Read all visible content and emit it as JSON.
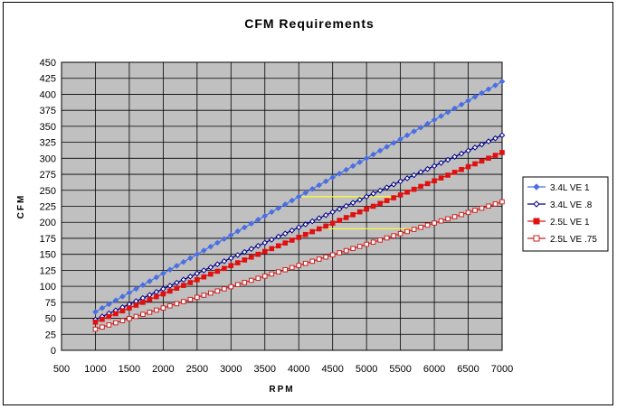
{
  "chart_data": {
    "type": "line",
    "title": "CFM Requirements",
    "xlabel": "RPM",
    "ylabel": "CFM",
    "xlim": [
      500,
      7000
    ],
    "ylim": [
      0,
      450
    ],
    "x_ticks": [
      500,
      1000,
      1500,
      2000,
      2500,
      3000,
      3500,
      4000,
      4500,
      5000,
      5500,
      6000,
      6500,
      7000
    ],
    "y_ticks": [
      0,
      25,
      50,
      75,
      100,
      125,
      150,
      175,
      200,
      225,
      250,
      275,
      300,
      325,
      350,
      375,
      400,
      425,
      450
    ],
    "x_tick_labels": [
      "500",
      "1000",
      "1500",
      "2000",
      "2500",
      "3000",
      "3500",
      "4000",
      "4500",
      "5000",
      "5500",
      "6000",
      "6500",
      "7000"
    ],
    "y_tick_labels": [
      "0",
      "25",
      "50",
      "75",
      "100",
      "125",
      "150",
      "175",
      "200",
      "225",
      "250",
      "275",
      "300",
      "325",
      "350",
      "375",
      "400",
      "425",
      "450"
    ],
    "grid": true,
    "plot_background": "#c0c0c0",
    "legend_position": "right",
    "x": [
      1000,
      7000
    ],
    "series": [
      {
        "name": "3.4L VE 1",
        "values": [
          60,
          420
        ],
        "color": "#4a6fe3",
        "marker": "diamond-filled"
      },
      {
        "name": "3.4L VE .8",
        "values": [
          48,
          336
        ],
        "color": "#00008b",
        "marker": "diamond-open"
      },
      {
        "name": "2.5L VE 1",
        "values": [
          44,
          309
        ],
        "color": "#e01010",
        "marker": "square-filled"
      },
      {
        "name": "2.5L VE .75",
        "values": [
          33,
          232
        ],
        "color": "#d02020",
        "marker": "square-open"
      }
    ],
    "reference_lines": [
      {
        "from": [
          4000,
          240
        ],
        "to": [
          5400,
          240
        ],
        "color": "#ffff33"
      },
      {
        "from": [
          4400,
          190
        ],
        "to": [
          5800,
          190
        ],
        "color": "#ffff33"
      }
    ]
  }
}
